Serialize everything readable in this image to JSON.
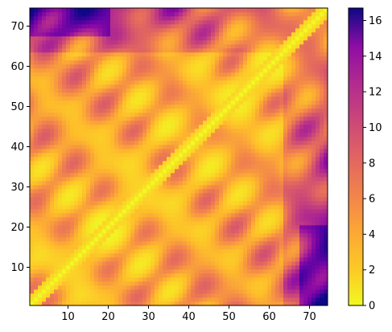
{
  "chart_data": {
    "type": "heatmap",
    "title": "",
    "xlabel": "",
    "ylabel": "",
    "n": 74,
    "x_range": [
      1,
      74
    ],
    "y_range": [
      1,
      74
    ],
    "x_ticks": [
      10,
      20,
      30,
      40,
      50,
      60,
      70
    ],
    "y_ticks": [
      10,
      20,
      30,
      40,
      50,
      60,
      70
    ],
    "colormap": "plasma_r",
    "color_range": [
      0,
      16.7
    ],
    "colorbar_ticks": [
      0,
      2,
      4,
      6,
      8,
      10,
      12,
      14,
      16
    ],
    "diagonal_value": 0,
    "description_of_values": "symmetric distance matrix; values grow with index separation and are largest near the top-left/bottom-right corners",
    "grid": false,
    "colorbar_position": "right"
  }
}
